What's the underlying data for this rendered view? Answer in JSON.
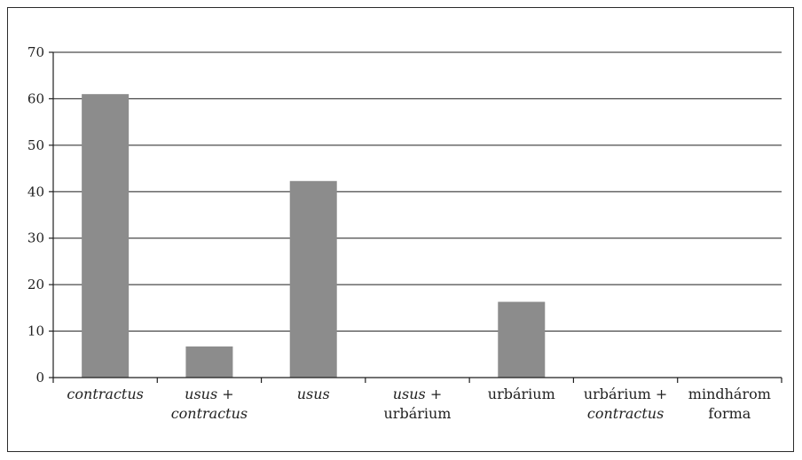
{
  "chart_data": {
    "type": "bar",
    "categories": [
      {
        "lines": [
          {
            "text": "contractus",
            "italic": true
          }
        ]
      },
      {
        "lines": [
          {
            "text": "usus +",
            "italic": true
          },
          {
            "text": "contractus",
            "italic": true
          }
        ]
      },
      {
        "lines": [
          {
            "text": "usus",
            "italic": true
          }
        ]
      },
      {
        "lines": [
          {
            "text": "usus +",
            "italic": true
          },
          {
            "text": "urbárium",
            "italic": false
          }
        ]
      },
      {
        "lines": [
          {
            "text": "urbárium",
            "italic": false
          }
        ]
      },
      {
        "lines": [
          {
            "text": "urbárium +",
            "italic": false
          },
          {
            "text": "contractus",
            "italic": true
          }
        ]
      },
      {
        "lines": [
          {
            "text": "mindhárom",
            "italic": false
          },
          {
            "text": "forma",
            "italic": false
          }
        ]
      }
    ],
    "values": [
      61,
      6.7,
      42.3,
      0,
      16.3,
      0,
      0
    ],
    "yticks": [
      0,
      10,
      20,
      30,
      40,
      50,
      60,
      70
    ],
    "ylim": [
      0,
      70
    ],
    "grid": true,
    "bar_color": "#8c8c8c",
    "title": "",
    "xlabel": "",
    "ylabel": ""
  }
}
